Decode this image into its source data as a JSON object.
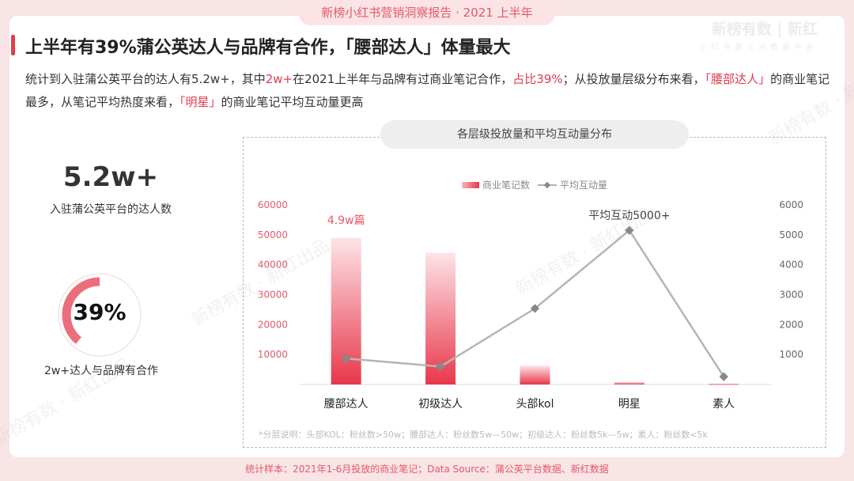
{
  "header": {
    "tab": "新榜小红书营销洞察报告  · 2021 上半年",
    "logo_main": "新榜有数 | 新红",
    "logo_sub": "小红书第三方数据平台"
  },
  "title": "上半年有39%蒲公英达人与品牌有合作，「腰部达人」体量最大",
  "desc": {
    "p1": "统计到入驻蒲公英平台的达人有5.2w+，其中",
    "h1": "2w+",
    "p2": "在2021上半年与品牌有过商业笔记合作，",
    "h2": "占比39%",
    "p3": "；从投放量层级分布来看，",
    "h3": "「腰部达人」",
    "p4": "的商业笔记最多，从笔记平均热度来看，",
    "h4": "「明星」",
    "p5": "的商业笔记平均互动量更高"
  },
  "stats": {
    "total_value": "5.2w+",
    "total_label": "入驻蒲公英平台的达人数",
    "ratio_value": "39%",
    "ratio": 0.39,
    "ratio_label": "2w+达人与品牌有合作"
  },
  "watermark": "新榜有数 · 新红出品",
  "footer": "统计样本：2021年1-6月投放的商业笔记；Data Source：蒲公英平台数据、新红数据",
  "colors": {
    "accent": "#e63c50",
    "line": "#aaaaaa"
  },
  "chart_data": {
    "type": "bar+line",
    "title": "各层级投放量和平均互动量分布",
    "categories": [
      "腰部达人",
      "初级达人",
      "头部kol",
      "明星",
      "素人"
    ],
    "series": [
      {
        "name": "商业笔记数",
        "type": "bar",
        "axis": "left",
        "values": [
          49000,
          44000,
          6300,
          800,
          300
        ]
      },
      {
        "name": "平均互动量",
        "type": "line",
        "axis": "right",
        "values": [
          870,
          600,
          2540,
          5150,
          260
        ]
      }
    ],
    "left_ylim": [
      0,
      60000
    ],
    "left_ticks": [
      10000,
      20000,
      30000,
      40000,
      50000,
      60000
    ],
    "right_ylim": [
      0,
      6000
    ],
    "right_ticks": [
      1000,
      2000,
      3000,
      4000,
      5000,
      6000
    ],
    "annotations": [
      "4.9w篇",
      "平均互动5000+"
    ],
    "note": "*分层说明：头部KOL：粉丝数>50w；腰部达人：粉丝数5w—50w；初级达人：粉丝数5k—5w；素人：粉丝数<5k",
    "legend": "top-center"
  }
}
